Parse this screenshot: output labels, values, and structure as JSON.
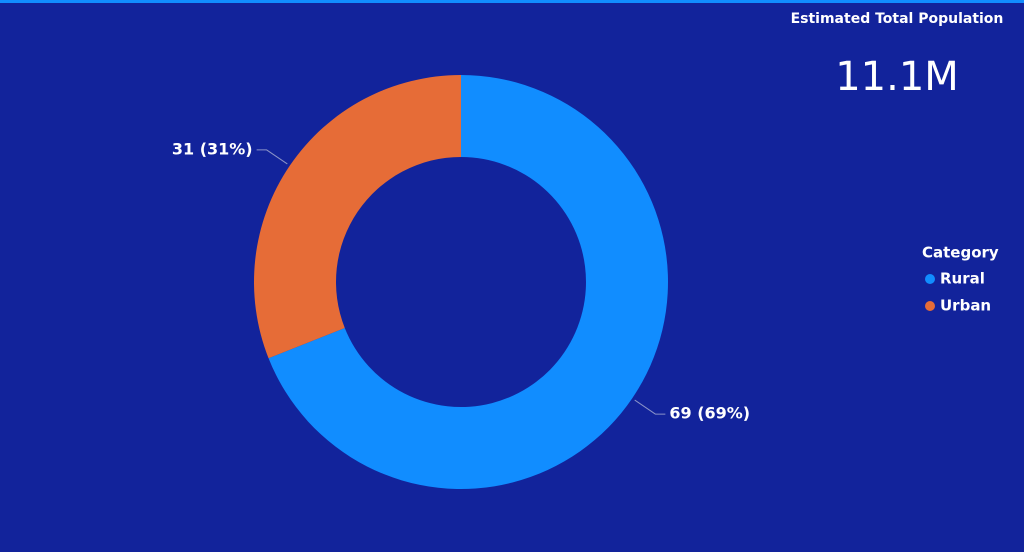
{
  "chart_data": {
    "type": "donut",
    "categories": [
      "Rural",
      "Urban"
    ],
    "values": [
      69,
      31
    ],
    "value_labels": [
      "69 (69%)",
      "31 (31%)"
    ],
    "colors": [
      "#118DFF",
      "#E66C37"
    ],
    "legend_title": "Category",
    "legend": "right"
  },
  "card": {
    "title": "Estimated Total Population",
    "value": "11.1M"
  }
}
